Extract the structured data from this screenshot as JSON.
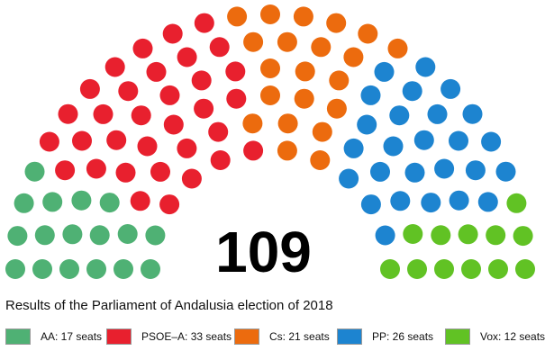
{
  "chart_data": {
    "type": "parliament",
    "title": "Results of the Parliament of Andalusia election of 2018",
    "total_seats": "109",
    "series": [
      {
        "name": "AA",
        "seats": 17,
        "label": "AA: 17 seats",
        "color": "#4fb174"
      },
      {
        "name": "PSOE–A",
        "seats": 33,
        "label": "PSOE–A: 33 seats",
        "color": "#e8202e"
      },
      {
        "name": "Cs",
        "seats": 21,
        "label": "Cs: 21 seats",
        "color": "#ec6b0e"
      },
      {
        "name": "PP",
        "seats": 26,
        "label": "PP: 26 seats",
        "color": "#1d84d0"
      },
      {
        "name": "Vox",
        "seats": 12,
        "label": "Vox: 12 seats",
        "color": "#61c224"
      }
    ]
  }
}
